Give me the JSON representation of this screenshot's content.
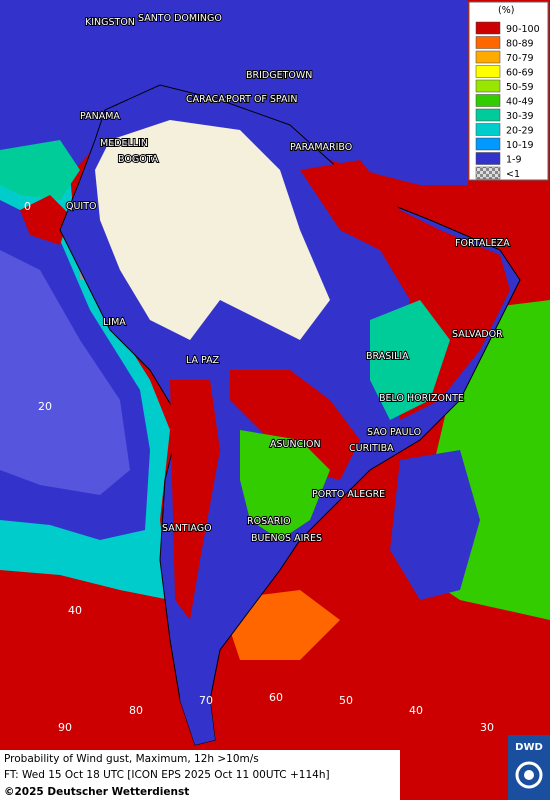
{
  "map": {
    "cities": [
      "KINGSTON",
      "SANTO DOMINGO",
      "BRIDGETOWN",
      "CARACAS",
      "PORT OF SPAIN",
      "PANAMA",
      "MEDELLIN",
      "BOGOTA",
      "PARAMARIBO",
      "QUITO",
      "FORTALEZA",
      "LIMA",
      "SALVADOR",
      "LA PAZ",
      "BRASILIA",
      "BELO HORIZONTE",
      "SAO PAULO",
      "ASUNCION",
      "CURITIBA",
      "PORTO ALEGRE",
      "ROSARIO",
      "SANTIAGO",
      "BUENOS AIRES"
    ],
    "latitude_labels": [
      "0",
      "20",
      "40"
    ],
    "longitude_labels": [
      "90",
      "80",
      "70",
      "60",
      "50",
      "40",
      "30"
    ]
  },
  "legend": {
    "title": "(%)",
    "entries": [
      {
        "label": "90-100",
        "color": "#cc0000"
      },
      {
        "label": "80-89",
        "color": "#ff6600"
      },
      {
        "label": "70-79",
        "color": "#ffaa00"
      },
      {
        "label": "60-69",
        "color": "#ffff00"
      },
      {
        "label": "50-59",
        "color": "#99e600"
      },
      {
        "label": "40-49",
        "color": "#33cc00"
      },
      {
        "label": "30-39",
        "color": "#00cc99"
      },
      {
        "label": "20-29",
        "color": "#00cccc"
      },
      {
        "label": "10-19",
        "color": "#0099ff"
      },
      {
        "label": "1-9",
        "color": "#3333cc"
      },
      {
        "label": "<1",
        "color": "#aaaaaa"
      }
    ]
  },
  "footer": {
    "line1": "Probability of Wind gust, Maximum, 12h >10m/s",
    "line2": "FT: Wed 15 Oct 18 UTC [ICON EPS 2025 Oct 11 00UTC +114h]",
    "copyright": "©2025 Deutscher Wetterdienst"
  },
  "logo": "DWD"
}
